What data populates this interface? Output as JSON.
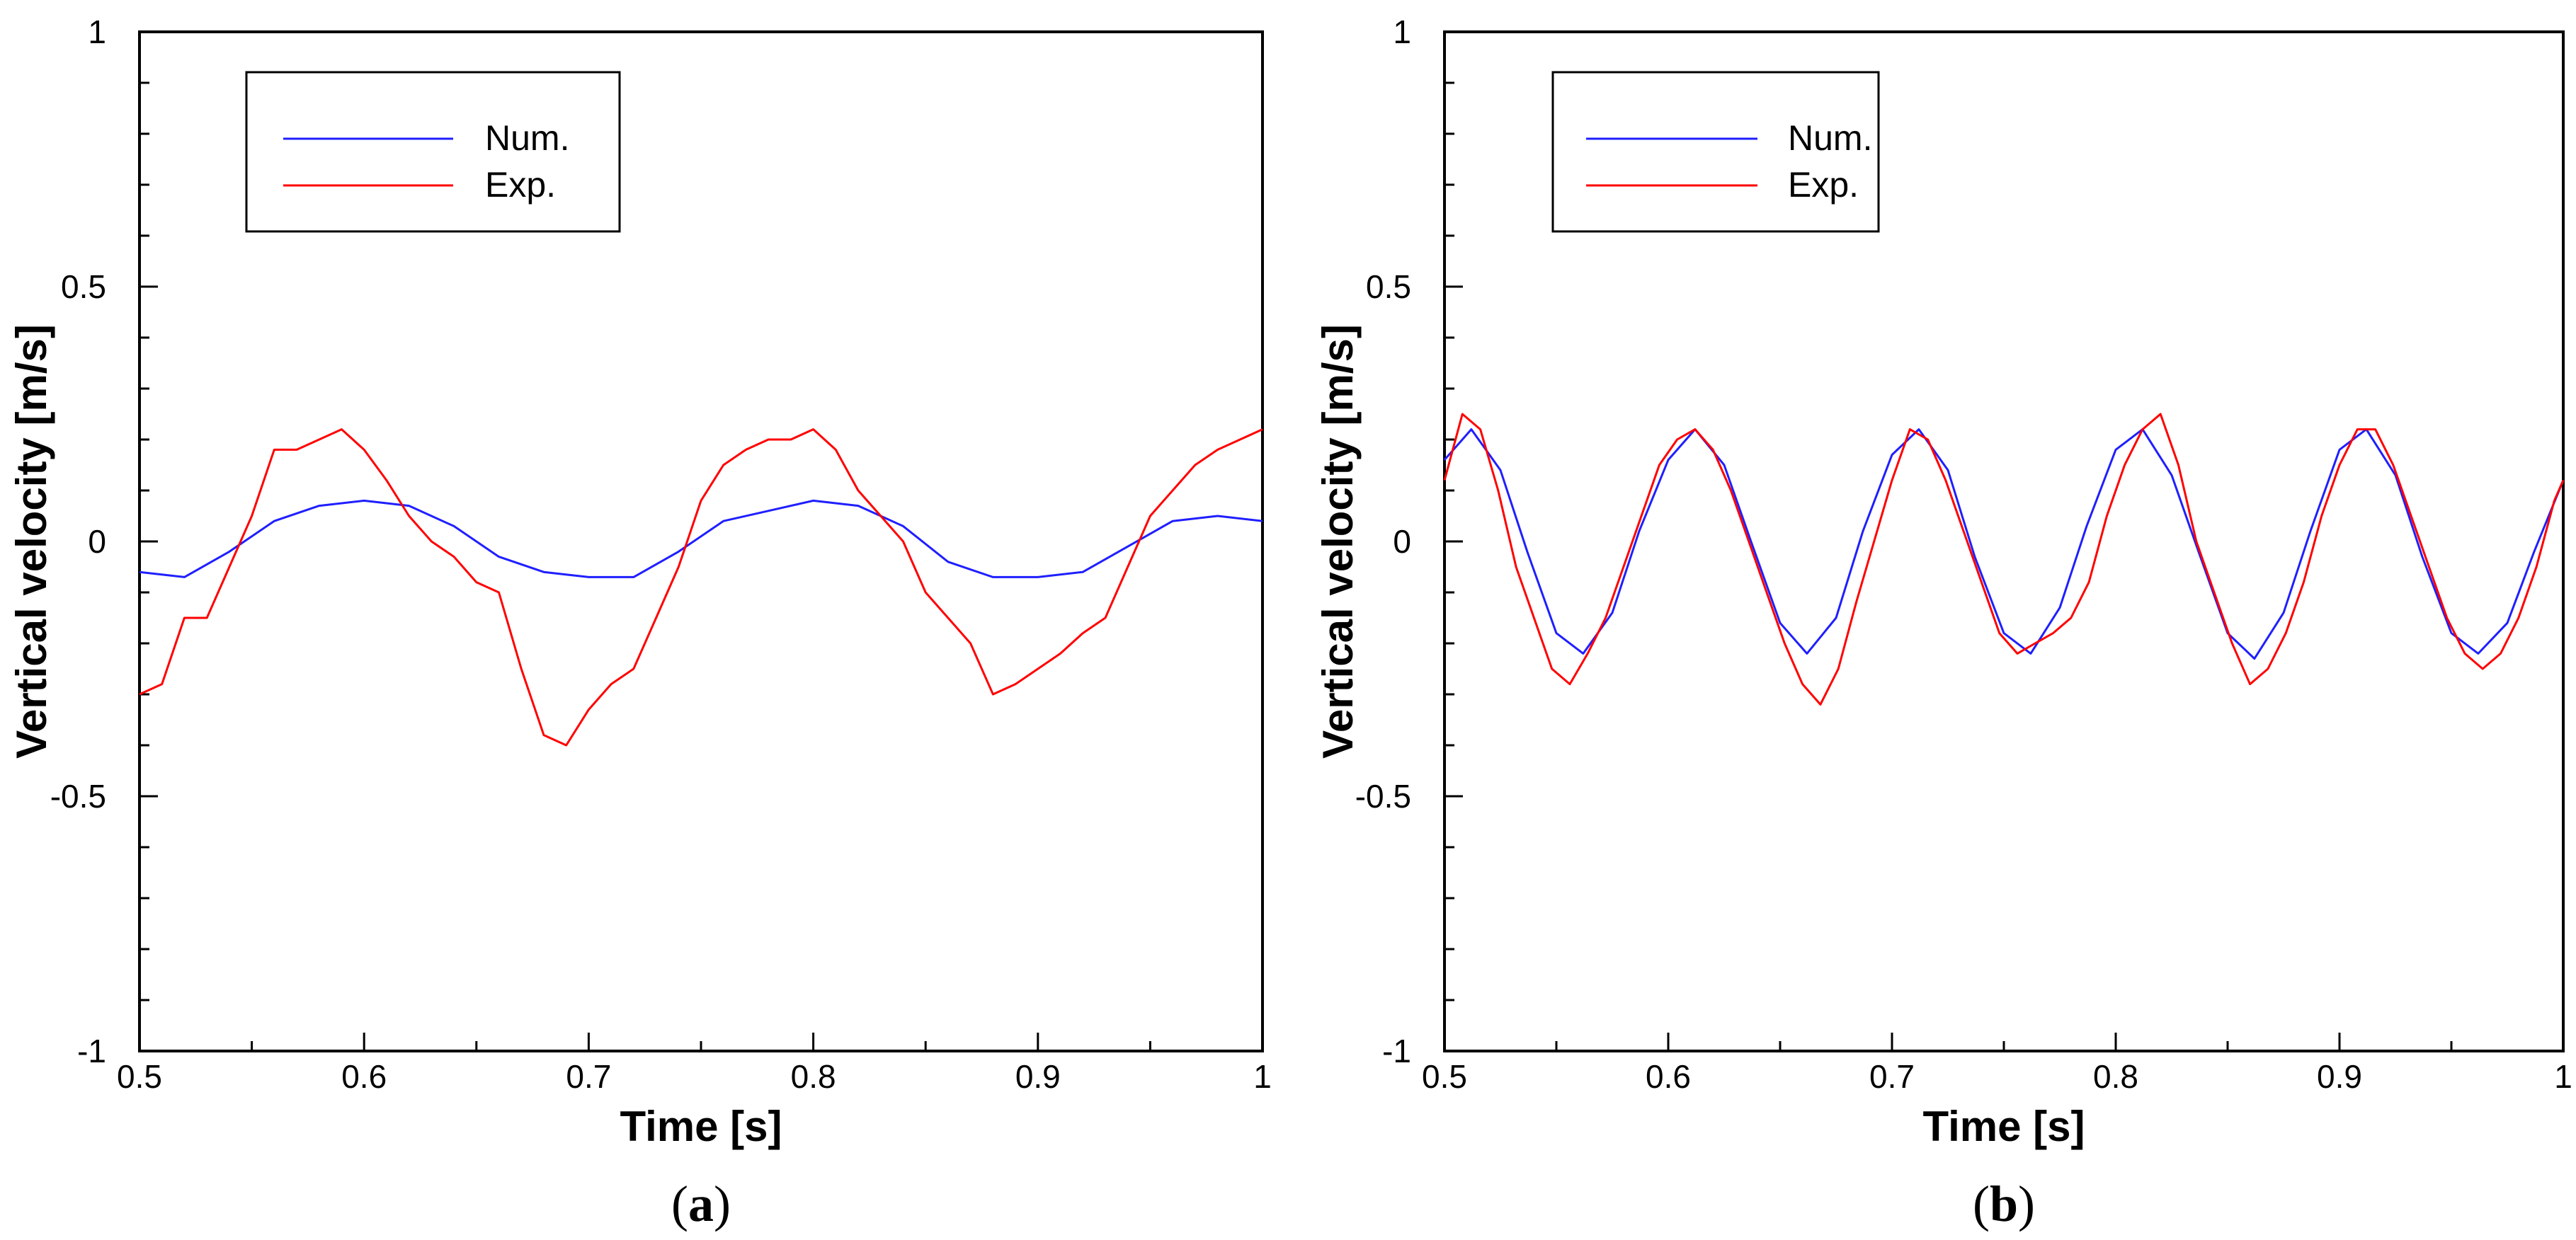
{
  "chart_data": [
    {
      "type": "line",
      "panel_label": "a",
      "xlabel": "Time [s]",
      "ylabel": "Vertical velocity [m/s]",
      "xlim": [
        0.5,
        1.0
      ],
      "ylim": [
        -1.0,
        1.0
      ],
      "x_ticks": [
        0.5,
        0.6,
        0.7,
        0.8,
        0.9,
        1.0
      ],
      "x_tick_labels": [
        "0.5",
        "0.6",
        "0.7",
        "0.8",
        "0.9",
        "1"
      ],
      "y_ticks": [
        -1.0,
        -0.5,
        0.0,
        0.5,
        1.0
      ],
      "y_tick_labels": [
        "-1",
        "-0.5",
        "0",
        "0.5",
        "1"
      ],
      "legend_position": "top-left",
      "series": [
        {
          "name": "Num.",
          "color": "#1f1fff",
          "x": [
            0.5,
            0.52,
            0.54,
            0.56,
            0.58,
            0.6,
            0.62,
            0.64,
            0.66,
            0.68,
            0.7,
            0.72,
            0.74,
            0.76,
            0.78,
            0.8,
            0.82,
            0.84,
            0.86,
            0.88,
            0.9,
            0.92,
            0.94,
            0.96,
            0.98,
            1.0
          ],
          "values": [
            -0.06,
            -0.07,
            -0.02,
            0.04,
            0.07,
            0.08,
            0.07,
            0.03,
            -0.03,
            -0.06,
            -0.07,
            -0.07,
            -0.02,
            0.04,
            0.06,
            0.08,
            0.07,
            0.03,
            -0.04,
            -0.07,
            -0.07,
            -0.06,
            -0.01,
            0.04,
            0.05,
            0.04
          ]
        },
        {
          "name": "Exp.",
          "color": "#ff0000",
          "x": [
            0.5,
            0.51,
            0.52,
            0.53,
            0.54,
            0.55,
            0.56,
            0.57,
            0.58,
            0.59,
            0.6,
            0.61,
            0.62,
            0.63,
            0.64,
            0.65,
            0.66,
            0.67,
            0.68,
            0.69,
            0.7,
            0.71,
            0.72,
            0.73,
            0.74,
            0.75,
            0.76,
            0.77,
            0.78,
            0.79,
            0.8,
            0.81,
            0.82,
            0.83,
            0.84,
            0.85,
            0.86,
            0.87,
            0.88,
            0.89,
            0.9,
            0.91,
            0.92,
            0.93,
            0.94,
            0.95,
            0.96,
            0.97,
            0.98,
            0.99,
            1.0
          ],
          "values": [
            -0.3,
            -0.28,
            -0.15,
            -0.15,
            -0.05,
            0.05,
            0.18,
            0.18,
            0.2,
            0.22,
            0.18,
            0.12,
            0.05,
            0.0,
            -0.03,
            -0.08,
            -0.1,
            -0.25,
            -0.38,
            -0.4,
            -0.33,
            -0.28,
            -0.25,
            -0.15,
            -0.05,
            0.08,
            0.15,
            0.18,
            0.2,
            0.2,
            0.22,
            0.18,
            0.1,
            0.05,
            0.0,
            -0.1,
            -0.15,
            -0.2,
            -0.3,
            -0.28,
            -0.25,
            -0.22,
            -0.18,
            -0.15,
            -0.05,
            0.05,
            0.1,
            0.15,
            0.18,
            0.2,
            0.22
          ]
        }
      ]
    },
    {
      "type": "line",
      "panel_label": "b",
      "xlabel": "Time [s]",
      "ylabel": "Vertical velocity [m/s]",
      "xlim": [
        0.5,
        1.0
      ],
      "ylim": [
        -1.0,
        1.0
      ],
      "x_ticks": [
        0.5,
        0.6,
        0.7,
        0.8,
        0.9,
        1.0
      ],
      "x_tick_labels": [
        "0.5",
        "0.6",
        "0.7",
        "0.8",
        "0.9",
        "1"
      ],
      "y_ticks": [
        -1.0,
        -0.5,
        0.0,
        0.5,
        1.0
      ],
      "y_tick_labels": [
        "-1",
        "-0.5",
        "0",
        "0.5",
        "1"
      ],
      "legend_position": "top-left",
      "series": [
        {
          "name": "Num.",
          "color": "#1f1fff",
          "x": [
            0.5,
            0.512,
            0.525,
            0.537,
            0.55,
            0.562,
            0.575,
            0.587,
            0.6,
            0.612,
            0.625,
            0.637,
            0.65,
            0.662,
            0.675,
            0.687,
            0.7,
            0.712,
            0.725,
            0.737,
            0.75,
            0.762,
            0.775,
            0.787,
            0.8,
            0.812,
            0.825,
            0.837,
            0.85,
            0.862,
            0.875,
            0.887,
            0.9,
            0.912,
            0.925,
            0.937,
            0.95,
            0.962,
            0.975,
            0.987,
            1.0
          ],
          "values": [
            0.16,
            0.22,
            0.14,
            -0.02,
            -0.18,
            -0.22,
            -0.14,
            0.02,
            0.16,
            0.22,
            0.15,
            0.0,
            -0.16,
            -0.22,
            -0.15,
            0.02,
            0.17,
            0.22,
            0.14,
            -0.03,
            -0.18,
            -0.22,
            -0.13,
            0.03,
            0.18,
            0.22,
            0.13,
            -0.02,
            -0.18,
            -0.23,
            -0.14,
            0.02,
            0.18,
            0.22,
            0.13,
            -0.03,
            -0.18,
            -0.22,
            -0.16,
            -0.02,
            0.12
          ]
        },
        {
          "name": "Exp.",
          "color": "#ff0000",
          "x": [
            0.5,
            0.508,
            0.516,
            0.524,
            0.532,
            0.54,
            0.548,
            0.556,
            0.564,
            0.572,
            0.58,
            0.588,
            0.596,
            0.604,
            0.612,
            0.62,
            0.628,
            0.636,
            0.644,
            0.652,
            0.66,
            0.668,
            0.676,
            0.684,
            0.692,
            0.7,
            0.708,
            0.716,
            0.724,
            0.732,
            0.74,
            0.748,
            0.756,
            0.764,
            0.772,
            0.78,
            0.788,
            0.796,
            0.804,
            0.812,
            0.82,
            0.828,
            0.836,
            0.844,
            0.852,
            0.86,
            0.868,
            0.876,
            0.884,
            0.892,
            0.9,
            0.908,
            0.916,
            0.924,
            0.932,
            0.94,
            0.948,
            0.956,
            0.964,
            0.972,
            0.98,
            0.988,
            0.996,
            1.0
          ],
          "values": [
            0.12,
            0.25,
            0.22,
            0.1,
            -0.05,
            -0.15,
            -0.25,
            -0.28,
            -0.22,
            -0.15,
            -0.05,
            0.05,
            0.15,
            0.2,
            0.22,
            0.18,
            0.1,
            0.0,
            -0.1,
            -0.2,
            -0.28,
            -0.32,
            -0.25,
            -0.12,
            0.0,
            0.12,
            0.22,
            0.2,
            0.12,
            0.02,
            -0.08,
            -0.18,
            -0.22,
            -0.2,
            -0.18,
            -0.15,
            -0.08,
            0.05,
            0.15,
            0.22,
            0.25,
            0.15,
            0.0,
            -0.1,
            -0.2,
            -0.28,
            -0.25,
            -0.18,
            -0.08,
            0.05,
            0.15,
            0.22,
            0.22,
            0.15,
            0.05,
            -0.05,
            -0.15,
            -0.22,
            -0.25,
            -0.22,
            -0.15,
            -0.05,
            0.08,
            0.12
          ]
        }
      ]
    }
  ]
}
